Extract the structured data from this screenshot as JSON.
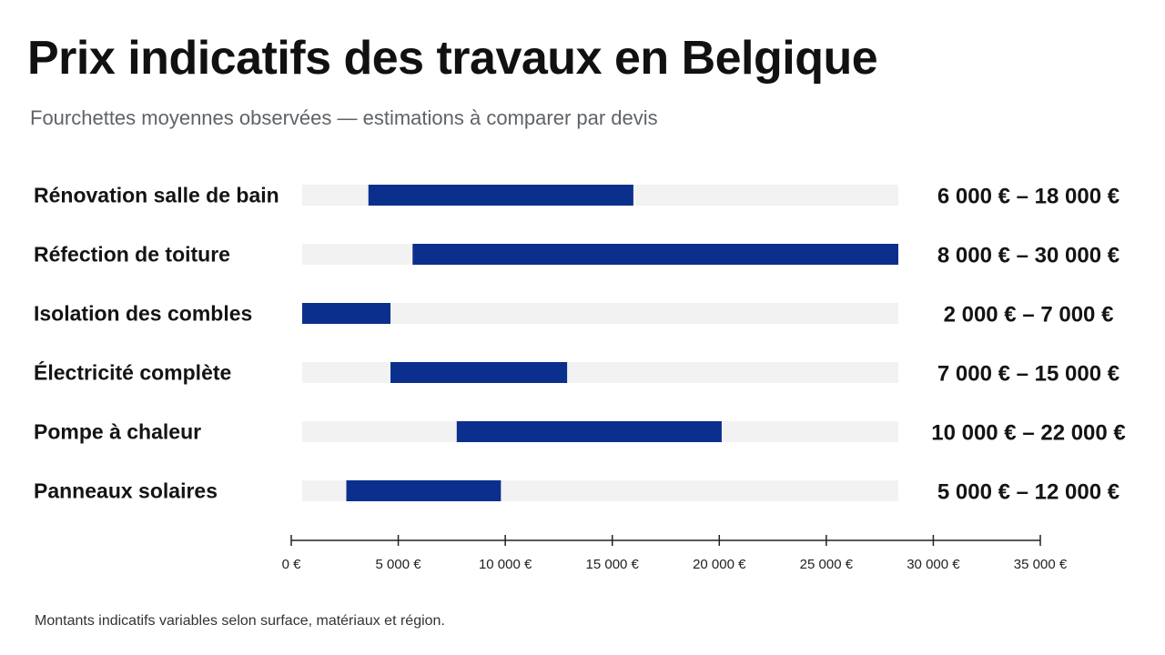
{
  "title": "Prix indicatifs des travaux en Belgique",
  "subtitle": "Fourchettes moyennes observées — estimations à comparer par devis",
  "footnote": "Montants indicatifs variables selon surface, matériaux et région.",
  "colors": {
    "bar": "#0b2f8c",
    "track": "#f2f2f2",
    "axis": "#222222"
  },
  "chart_data": {
    "type": "bar",
    "orientation": "horizontal",
    "subtype": "range",
    "title": "Prix indicatifs des travaux en Belgique",
    "subtitle": "Fourchettes moyennes observées — estimations à comparer par devis",
    "categories": [
      "Rénovation salle de bain",
      "Réfection de toiture",
      "Isolation des combles",
      "Électricité complète",
      "Pompe à chaleur",
      "Panneaux solaires"
    ],
    "ranges": [
      [
        6000,
        18000
      ],
      [
        8000,
        30000
      ],
      [
        2000,
        7000
      ],
      [
        7000,
        15000
      ],
      [
        10000,
        22000
      ],
      [
        5000,
        12000
      ]
    ],
    "range_labels": [
      "6 000 € – 18 000 €",
      "8 000 € – 30 000 €",
      "2 000 € – 7 000 €",
      "7 000 € – 15 000 €",
      "10 000 € – 22 000 €",
      "5 000 € – 12 000 €"
    ],
    "xlim": [
      0,
      35000
    ],
    "xticks": [
      0,
      5000,
      10000,
      15000,
      20000,
      25000,
      30000,
      35000
    ],
    "xtick_labels": [
      "0 €",
      "5 000 €",
      "10 000 €",
      "15 000 €",
      "20 000 €",
      "25 000 €",
      "30 000 €",
      "35 000 €"
    ],
    "xlabel": "",
    "ylabel": "",
    "grid": false,
    "legend": "none"
  }
}
